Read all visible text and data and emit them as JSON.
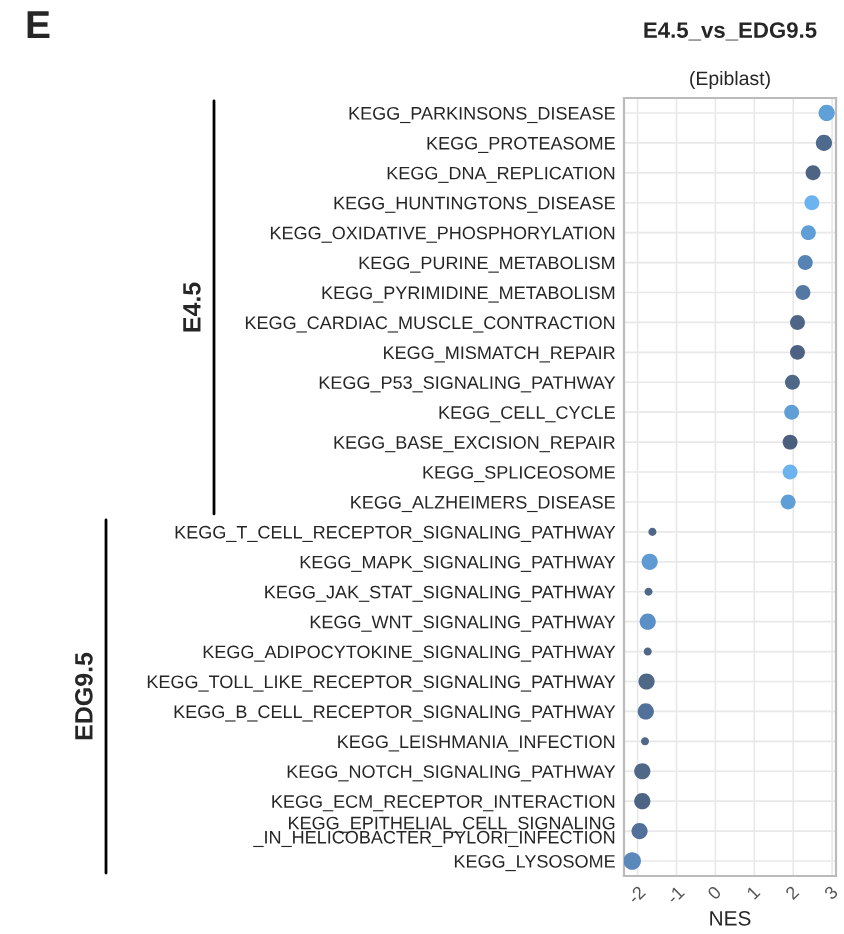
{
  "chart_data": {
    "type": "scatter",
    "orientation": "horizontal",
    "title": "E4.5_vs_EDG9.5",
    "subtitle": "(Epiblast)",
    "xlabel": "NES",
    "categories": [
      "KEGG_PARKINSONS_DISEASE",
      "KEGG_PROTEASOME",
      "KEGG_DNA_REPLICATION",
      "KEGG_HUNTINGTONS_DISEASE",
      "KEGG_OXIDATIVE_PHOSPHORYLATION",
      "KEGG_PURINE_METABOLISM",
      "KEGG_PYRIMIDINE_METABOLISM",
      "KEGG_CARDIAC_MUSCLE_CONTRACTION",
      "KEGG_MISMATCH_REPAIR",
      "KEGG_P53_SIGNALING_PATHWAY",
      "KEGG_CELL_CYCLE",
      "KEGG_BASE_EXCISION_REPAIR",
      "KEGG_SPLICEOSOME",
      "KEGG_ALZHEIMERS_DISEASE",
      "KEGG_T_CELL_RECEPTOR_SIGNALING_PATHWAY",
      "KEGG_MAPK_SIGNALING_PATHWAY",
      "KEGG_JAK_STAT_SIGNALING_PATHWAY",
      "KEGG_WNT_SIGNALING_PATHWAY",
      "KEGG_ADIPOCYTOKINE_SIGNALING_PATHWAY",
      "KEGG_TOLL_LIKE_RECEPTOR_SIGNALING_PATHWAY",
      "KEGG_B_CELL_RECEPTOR_SIGNALING_PATHWAY",
      "KEGG_LEISHMANIA_INFECTION",
      "KEGG_NOTCH_SIGNALING_PATHWAY",
      "KEGG_ECM_RECEPTOR_INTERACTION",
      "KEGG_EPITHELIAL_CELL_SIGNALING\n_IN_HELICOBACTER_PYLORI_INFECTION",
      "KEGG_LYSOSOME"
    ],
    "values": [
      2.86,
      2.79,
      2.51,
      2.48,
      2.39,
      2.31,
      2.25,
      2.11,
      2.11,
      1.98,
      1.96,
      1.92,
      1.92,
      1.87,
      -1.62,
      -1.69,
      -1.72,
      -1.74,
      -1.74,
      -1.77,
      -1.79,
      -1.81,
      -1.88,
      -1.88,
      -1.95,
      -2.14
    ],
    "sizes": [
      0.85,
      0.85,
      0.72,
      0.72,
      0.72,
      0.72,
      0.72,
      0.72,
      0.72,
      0.72,
      0.72,
      0.72,
      0.72,
      0.72,
      0.21,
      0.85,
      0.21,
      0.85,
      0.21,
      0.85,
      0.85,
      0.21,
      0.85,
      0.85,
      0.85,
      1
    ],
    "colors": [
      "#5fa0d8",
      "#4e6a8c",
      "#4d6485",
      "#6cb4ef",
      "#5f9fd6",
      "#5583b3",
      "#5378a3",
      "#4e6585",
      "#4d6283",
      "#4f6888",
      "#5f9fd5",
      "#4b5f7e",
      "#6cb4ef",
      "#5f9fd6",
      "#4f6888",
      "#5f9bd2",
      "#4f6888",
      "#5a90c6",
      "#4f6888",
      "#4f6888",
      "#51709a",
      "#4f6888",
      "#4f6888",
      "#4d6485",
      "#51709a",
      "#5a88bb"
    ],
    "xlim": [
      -2.35,
      3.1
    ],
    "xticks": [
      -2,
      -1,
      0,
      1,
      2,
      3
    ],
    "grid": true,
    "marker": "circle",
    "annotations": [
      "E",
      "E4.5",
      "EDG9.5"
    ]
  }
}
